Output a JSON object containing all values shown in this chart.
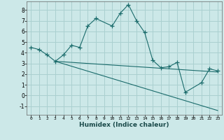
{
  "xlabel": "Humidex (Indice chaleur)",
  "bg_color": "#cce8e8",
  "grid_color": "#aad0d0",
  "line_color": "#1a6b6b",
  "xlim": [
    -0.5,
    23.5
  ],
  "ylim": [
    -1.8,
    8.8
  ],
  "yticks": [
    -1,
    0,
    1,
    2,
    3,
    4,
    5,
    6,
    7,
    8
  ],
  "xticks": [
    0,
    1,
    2,
    3,
    4,
    5,
    6,
    7,
    8,
    9,
    10,
    11,
    12,
    13,
    14,
    15,
    16,
    17,
    18,
    19,
    20,
    21,
    22,
    23
  ],
  "line1_x": [
    0,
    1,
    2,
    3,
    4,
    5,
    6,
    7,
    8,
    10,
    11,
    12,
    13,
    14,
    15,
    16,
    17,
    18,
    19,
    21,
    22,
    23
  ],
  "line1_y": [
    4.5,
    4.3,
    3.8,
    3.2,
    3.8,
    4.7,
    4.5,
    6.5,
    7.2,
    6.5,
    7.7,
    8.5,
    7.0,
    5.9,
    3.3,
    2.6,
    2.7,
    3.1,
    0.3,
    1.2,
    2.5,
    2.3
  ],
  "line2_x": [
    3,
    23
  ],
  "line2_y": [
    3.2,
    2.2
  ],
  "line3_x": [
    3,
    23
  ],
  "line3_y": [
    3.2,
    -1.4
  ]
}
